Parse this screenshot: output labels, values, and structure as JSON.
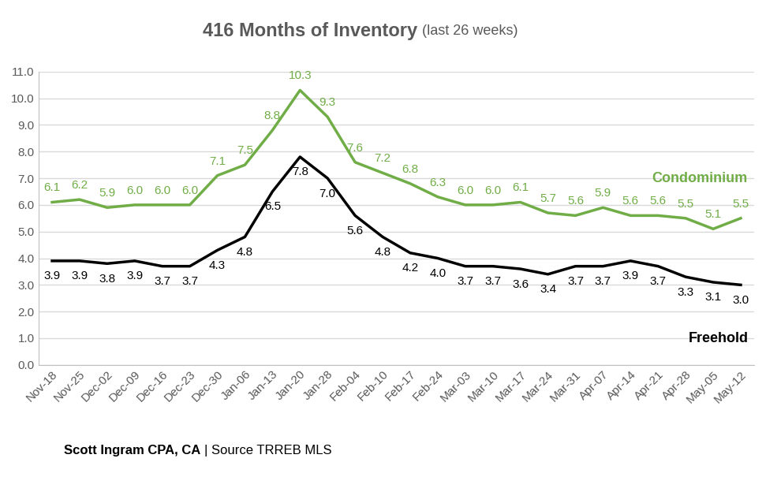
{
  "chart_data": {
    "type": "line",
    "title": "416 Months of Inventory",
    "subtitle": "(last 26 weeks)",
    "footer": [
      "Scott Ingram CPA, CA",
      "| Source TRREB MLS"
    ],
    "categories": [
      "Nov-18",
      "Nov-25",
      "Dec-02",
      "Dec-09",
      "Dec-16",
      "Dec-23",
      "Dec-30",
      "Jan-06",
      "Jan-13",
      "Jan-20",
      "Jan-28",
      "Feb-04",
      "Feb-10",
      "Feb-17",
      "Feb-24",
      "Mar-03",
      "Mar-10",
      "Mar-17",
      "Mar-24",
      "Mar-31",
      "Apr-07",
      "Apr-14",
      "Apr-21",
      "Apr-28",
      "May-05",
      "May-12"
    ],
    "series": [
      {
        "name": "Condominium",
        "color": "#70ad47",
        "values": [
          6.1,
          6.2,
          5.9,
          6.0,
          6.0,
          6.0,
          7.1,
          7.5,
          8.8,
          10.3,
          9.3,
          7.6,
          7.2,
          6.8,
          6.3,
          6.0,
          6.0,
          6.1,
          5.7,
          5.6,
          5.9,
          5.6,
          5.6,
          5.5,
          5.1,
          5.5
        ]
      },
      {
        "name": "Freehold",
        "color": "#000000",
        "values": [
          3.9,
          3.9,
          3.8,
          3.9,
          3.7,
          3.7,
          4.3,
          4.8,
          6.5,
          7.8,
          7.0,
          5.6,
          4.8,
          4.2,
          4.0,
          3.7,
          3.7,
          3.6,
          3.4,
          3.7,
          3.7,
          3.9,
          3.7,
          3.3,
          3.1,
          3.0
        ]
      }
    ],
    "ylim": [
      0,
      11
    ],
    "yticks": [
      {
        "value": 0,
        "label": "0.0"
      },
      {
        "value": 1,
        "label": "1.0"
      },
      {
        "value": 2,
        "label": "2.0"
      },
      {
        "value": 3,
        "label": "3.0"
      },
      {
        "value": 4,
        "label": "4.0"
      },
      {
        "value": 5,
        "label": "5.0"
      },
      {
        "value": 6,
        "label": "6.0"
      },
      {
        "value": 7,
        "label": "7.0"
      },
      {
        "value": 8,
        "label": "8.0"
      },
      {
        "value": 9,
        "label": "9.0"
      },
      {
        "value": 10,
        "label": "10.0"
      },
      {
        "value": 11,
        "label": "11.0"
      }
    ],
    "grid": true,
    "data_labels": true
  }
}
